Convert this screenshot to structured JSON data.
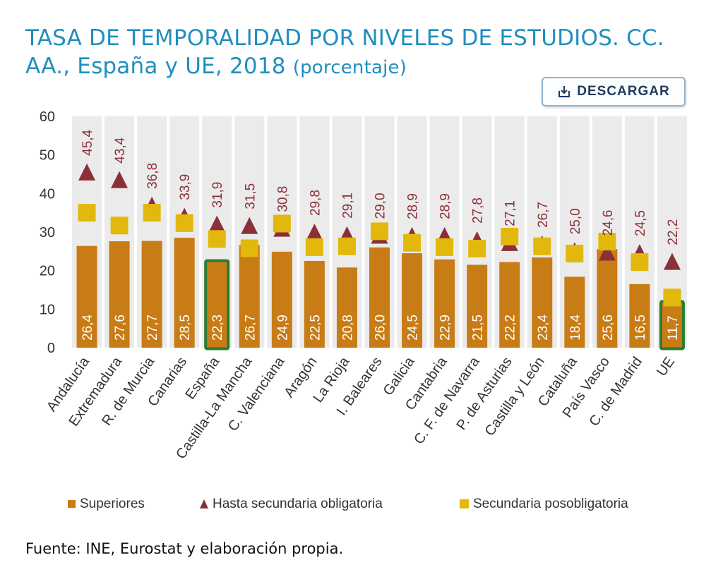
{
  "header": {
    "title": "TASA DE TEMPORALIDAD POR NIVELES DE ESTUDIOS. CC. AA., España y UE, 2018",
    "unit": "(porcentaje)"
  },
  "toolbar": {
    "download_label": "DESCARGAR",
    "download_icon": "download-icon"
  },
  "footer": {
    "source": "Fuente: INE, Eurostat y elaboración propia."
  },
  "colors": {
    "superiores": "#c87c16",
    "hasta_secundaria": "#8b3038",
    "secundaria_posobligatoria": "#e2b80c",
    "highlight_border": "#2a7d2e",
    "plot_background": "#ebebeb",
    "title": "#1f8fbf"
  },
  "chart_data": {
    "type": "bar",
    "categories": [
      "Andalucía",
      "Extremadura",
      "R. de Murcia",
      "Canarias",
      "España",
      "Castilla-La Mancha",
      "C. Valenciana",
      "Aragón",
      "La Rioja",
      "I. Baleares",
      "Galicia",
      "Cantabria",
      "C. F. de Navarra",
      "P. de Asturias",
      "Castilla y León",
      "Cataluña",
      "País Vasco",
      "C. de Madrid",
      "UE"
    ],
    "highlighted": [
      "España",
      "UE"
    ],
    "series": [
      {
        "name": "Superiores",
        "kind": "bar",
        "values": [
          26.4,
          27.6,
          27.7,
          28.5,
          22.3,
          26.7,
          24.9,
          22.5,
          20.8,
          26.0,
          24.5,
          22.9,
          21.5,
          22.2,
          23.4,
          18.4,
          25.6,
          16.5,
          11.7
        ],
        "value_labels": [
          "26,4",
          "27,6",
          "27,7",
          "28,5",
          "22,3",
          "26,7",
          "24,9",
          "22,5",
          "20,8",
          "26,0",
          "24,5",
          "22,9",
          "21,5",
          "22,2",
          "23,4",
          "18,4",
          "25,6",
          "16,5",
          "11,7"
        ]
      },
      {
        "name": "Hasta secundaria obligatoria",
        "kind": "triangle",
        "values": [
          45.4,
          43.4,
          36.8,
          33.9,
          31.9,
          31.5,
          30.8,
          29.8,
          29.1,
          29.0,
          28.9,
          28.9,
          27.8,
          27.1,
          26.7,
          25.0,
          24.6,
          24.5,
          22.2
        ],
        "value_labels": [
          "45,4",
          "43,4",
          "36,8",
          "33,9",
          "31,9",
          "31,5",
          "30,8",
          "29,8",
          "29,1",
          "29,0",
          "28,9",
          "28,9",
          "27,8",
          "27,1",
          "26,7",
          "25,0",
          "24,6",
          "24,5",
          "22,2"
        ]
      },
      {
        "name": "Secundaria posobligatoria",
        "kind": "square",
        "values": [
          35.0,
          31.7,
          35.0,
          32.3,
          28.2,
          25.8,
          32.2,
          26.1,
          26.3,
          30.2,
          27.2,
          26.1,
          25.7,
          28.8,
          26.3,
          24.4,
          27.5,
          22.2,
          13.0
        ]
      }
    ],
    "ylim": [
      0,
      60
    ],
    "yticks": [
      0,
      10,
      20,
      30,
      40,
      50,
      60
    ],
    "grid": false,
    "legend_position": "bottom"
  }
}
